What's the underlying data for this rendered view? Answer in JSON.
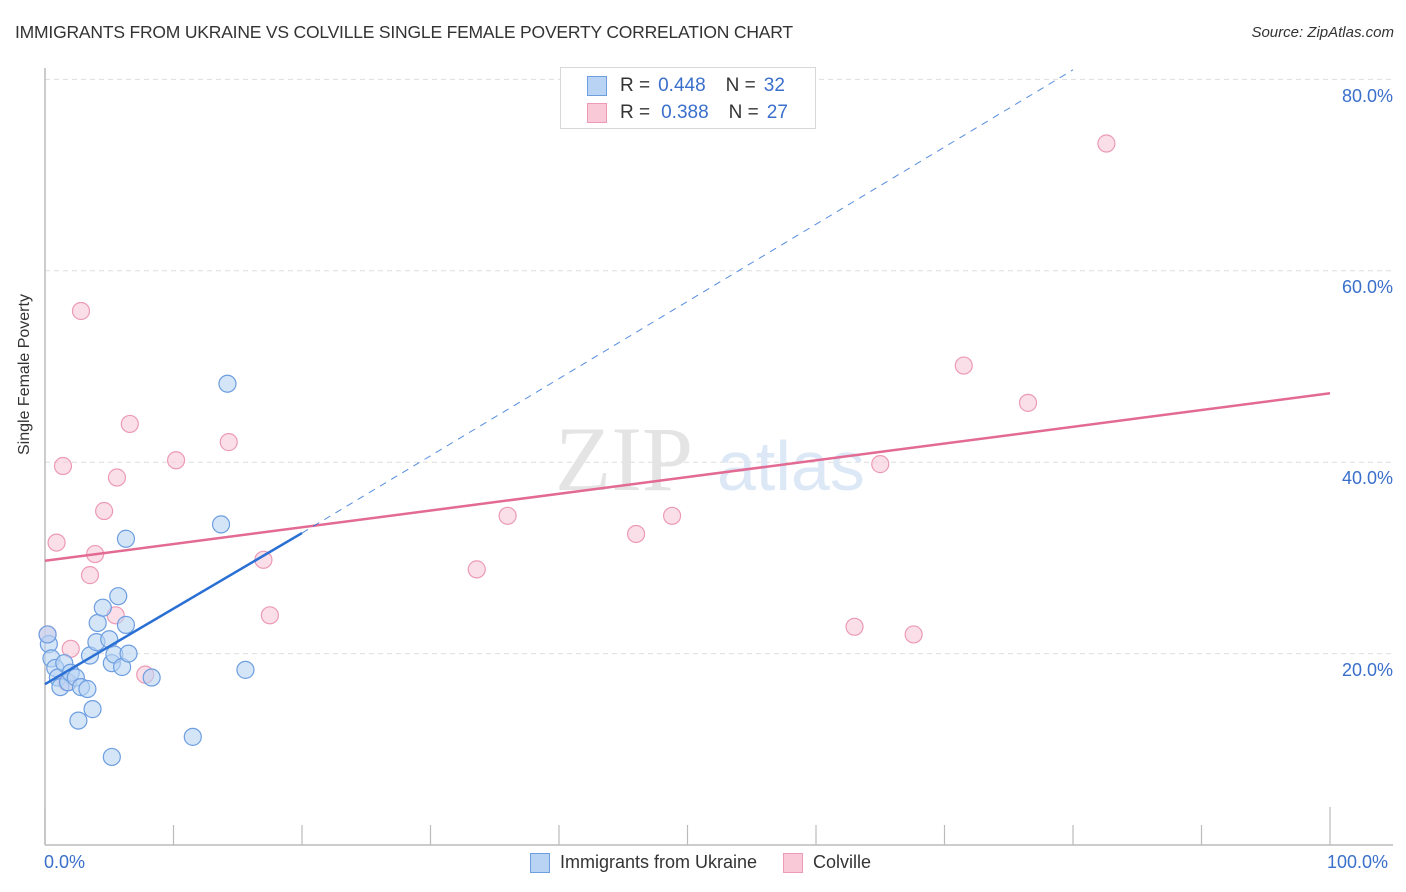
{
  "header": {
    "title": "IMMIGRANTS FROM UKRAINE VS COLVILLE SINGLE FEMALE POVERTY CORRELATION CHART",
    "source": "Source: ZipAtlas.com"
  },
  "watermark": {
    "zip": "ZIP",
    "atlas": "atlas"
  },
  "colors": {
    "blue_fill": "#b9d3f4",
    "blue_stroke": "#6d9ee0",
    "blue_line": "#2a6fd4",
    "pink_fill": "#f9c9d8",
    "pink_stroke": "#ec9ab5",
    "pink_line": "#e26a93",
    "tick_label": "#3a6fcb",
    "grid": "#dddddd"
  },
  "legend_top": {
    "rows": [
      {
        "r_label": "R =",
        "r_value": "0.448",
        "n_label": "N =",
        "n_value": "32"
      },
      {
        "r_label": "R =",
        "r_value": "0.388",
        "n_label": "N =",
        "n_value": "27"
      }
    ]
  },
  "legend_bottom": {
    "items": [
      {
        "label": "Immigrants from Ukraine"
      },
      {
        "label": "Colville"
      }
    ]
  },
  "axes": {
    "ylabel": "Single Female Poverty",
    "x_min_label": "0.0%",
    "x_max_label": "100.0%",
    "y_ticks": [
      "80.0%",
      "60.0%",
      "40.0%",
      "20.0%"
    ]
  },
  "chart_data": {
    "type": "scatter",
    "title": "Immigrants from Ukraine vs Colville Single Female Poverty Correlation Chart",
    "xlabel": "",
    "ylabel": "Single Female Poverty",
    "xlim": [
      0,
      100
    ],
    "ylim": [
      0,
      82
    ],
    "x_tick_labels": [
      "0.0%",
      "100.0%"
    ],
    "y_tick_labels": [
      "20.0%",
      "40.0%",
      "60.0%",
      "80.0%"
    ],
    "grid": true,
    "legend_position": "bottom",
    "series": [
      {
        "name": "Immigrants from Ukraine",
        "R": 0.448,
        "N": 32,
        "points": [
          [
            0.3,
            21.0
          ],
          [
            0.5,
            19.5
          ],
          [
            0.8,
            18.5
          ],
          [
            1.0,
            17.5
          ],
          [
            1.2,
            16.5
          ],
          [
            1.5,
            19.0
          ],
          [
            1.8,
            17.0
          ],
          [
            2.0,
            18.0
          ],
          [
            2.4,
            17.5
          ],
          [
            2.6,
            13.0
          ],
          [
            2.8,
            16.5
          ],
          [
            3.3,
            16.3
          ],
          [
            3.5,
            19.8
          ],
          [
            3.7,
            14.2
          ],
          [
            4.0,
            21.2
          ],
          [
            4.1,
            23.2
          ],
          [
            4.5,
            24.8
          ],
          [
            5.0,
            21.5
          ],
          [
            5.2,
            19.0
          ],
          [
            5.4,
            19.9
          ],
          [
            5.7,
            26.0
          ],
          [
            6.0,
            18.6
          ],
          [
            6.3,
            23.0
          ],
          [
            6.5,
            20.0
          ],
          [
            6.3,
            32.0
          ],
          [
            5.2,
            9.2
          ],
          [
            8.3,
            17.5
          ],
          [
            11.5,
            11.3
          ],
          [
            13.7,
            33.5
          ],
          [
            14.2,
            48.2
          ],
          [
            15.6,
            18.3
          ],
          [
            0.2,
            22.0
          ]
        ],
        "trend": {
          "x0": 0,
          "y0": 16.8,
          "x1": 20,
          "y1": 32.6,
          "dashed_extension_to": [
            80,
            81
          ]
        }
      },
      {
        "name": "Colville",
        "R": 0.388,
        "N": 27,
        "points": [
          [
            0.2,
            22.0
          ],
          [
            0.9,
            31.6
          ],
          [
            1.4,
            39.6
          ],
          [
            2.0,
            20.5
          ],
          [
            1.7,
            17.0
          ],
          [
            3.5,
            28.2
          ],
          [
            3.9,
            30.4
          ],
          [
            4.6,
            34.9
          ],
          [
            5.5,
            24.0
          ],
          [
            5.6,
            38.4
          ],
          [
            6.6,
            44.0
          ],
          [
            7.8,
            17.8
          ],
          [
            2.8,
            55.8
          ],
          [
            10.2,
            40.2
          ],
          [
            14.3,
            42.1
          ],
          [
            17.0,
            29.8
          ],
          [
            17.5,
            24.0
          ],
          [
            33.6,
            28.8
          ],
          [
            36.0,
            34.4
          ],
          [
            46.0,
            32.5
          ],
          [
            48.8,
            34.4
          ],
          [
            63.0,
            22.8
          ],
          [
            65.0,
            39.8
          ],
          [
            67.6,
            22.0
          ],
          [
            71.5,
            50.1
          ],
          [
            76.5,
            46.2
          ],
          [
            82.6,
            73.3
          ]
        ],
        "trend": {
          "x0": 0,
          "y0": 29.7,
          "x1": 100,
          "y1": 47.2
        }
      }
    ]
  }
}
